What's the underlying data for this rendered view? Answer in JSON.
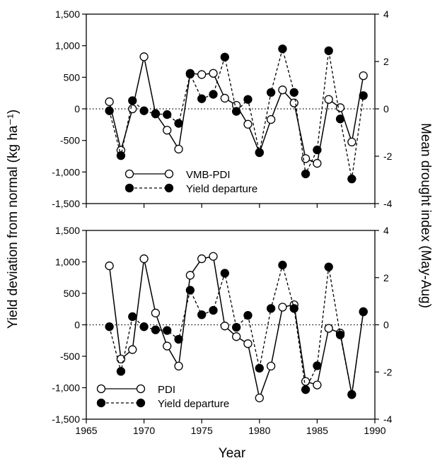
{
  "chart_data": {
    "type": "line",
    "shared_xlabel": "Year",
    "shared_ylabel_left": "Yield deviation from normal (kg ha⁻¹)",
    "shared_ylabel_right": "Mean drought index (May-Aug)",
    "xlim": [
      1965,
      1990
    ],
    "x_ticks": [
      "1965",
      "1970",
      "1975",
      "1980",
      "1985",
      "1990"
    ],
    "y_left_lim": [
      -1500,
      1500
    ],
    "y_left_ticks": [
      "-1,500",
      "-1,000",
      "-500",
      "0",
      "500",
      "1,000",
      "1,500"
    ],
    "y_right_lim": [
      -4,
      4
    ],
    "y_right_ticks": [
      "-4",
      "-2",
      "0",
      "2",
      "4"
    ],
    "grid": false,
    "panels": [
      {
        "legend_position": "lower-left",
        "series": [
          {
            "name": "VMB-PDI",
            "axis": "right",
            "style": "solid-open-circle",
            "x": [
              1967,
              1968,
              1969,
              1970,
              1971,
              1972,
              1973,
              1974,
              1975,
              1976,
              1977,
              1978,
              1979,
              1980,
              1981,
              1982,
              1983,
              1984,
              1985,
              1986,
              1987,
              1988,
              1989
            ],
            "values": [
              0.3,
              -1.75,
              0.0,
              2.2,
              -0.2,
              -0.9,
              -1.7,
              1.5,
              1.45,
              1.5,
              0.45,
              0.15,
              -0.65,
              -1.85,
              -0.45,
              0.8,
              0.25,
              -2.1,
              -2.3,
              0.4,
              0.05,
              -1.4,
              1.4
            ]
          },
          {
            "name": "Yield departure",
            "axis": "left",
            "style": "dashed-filled-circle",
            "x": [
              1967,
              1968,
              1969,
              1970,
              1971,
              1972,
              1973,
              1974,
              1975,
              1976,
              1977,
              1978,
              1979,
              1980,
              1981,
              1982,
              1983,
              1984,
              1985,
              1986,
              1987,
              1988,
              1989
            ],
            "values": [
              -30,
              -740,
              130,
              -30,
              -80,
              -90,
              -230,
              550,
              160,
              230,
              820,
              -40,
              150,
              -690,
              260,
              950,
              260,
              -1030,
              -650,
              920,
              -160,
              -1110,
              210
            ]
          }
        ]
      },
      {
        "legend_position": "lower-left",
        "series": [
          {
            "name": "PDI",
            "axis": "right",
            "style": "solid-open-circle",
            "x": [
              1967,
              1968,
              1969,
              1970,
              1971,
              1972,
              1973,
              1974,
              1975,
              1976,
              1977,
              1978,
              1979,
              1980,
              1981,
              1982,
              1983,
              1984,
              1985,
              1986,
              1987,
              1988,
              1989
            ],
            "values": [
              2.5,
              -1.45,
              -1.05,
              2.8,
              0.5,
              -0.9,
              -1.75,
              2.1,
              2.8,
              2.9,
              -0.05,
              -0.5,
              -0.8,
              -3.1,
              -1.75,
              0.75,
              0.85,
              -2.4,
              -2.55,
              -0.15,
              -0.35,
              -2.95,
              0.55
            ]
          },
          {
            "name": "Yield departure",
            "axis": "left",
            "style": "dashed-filled-circle",
            "x": [
              1967,
              1968,
              1969,
              1970,
              1971,
              1972,
              1973,
              1974,
              1975,
              1976,
              1977,
              1978,
              1979,
              1980,
              1981,
              1982,
              1983,
              1984,
              1985,
              1986,
              1987,
              1988,
              1989
            ],
            "values": [
              -30,
              -740,
              130,
              -30,
              -80,
              -90,
              -230,
              550,
              160,
              230,
              820,
              -40,
              150,
              -690,
              260,
              950,
              260,
              -1030,
              -650,
              920,
              -160,
              -1110,
              210
            ]
          }
        ]
      }
    ]
  }
}
